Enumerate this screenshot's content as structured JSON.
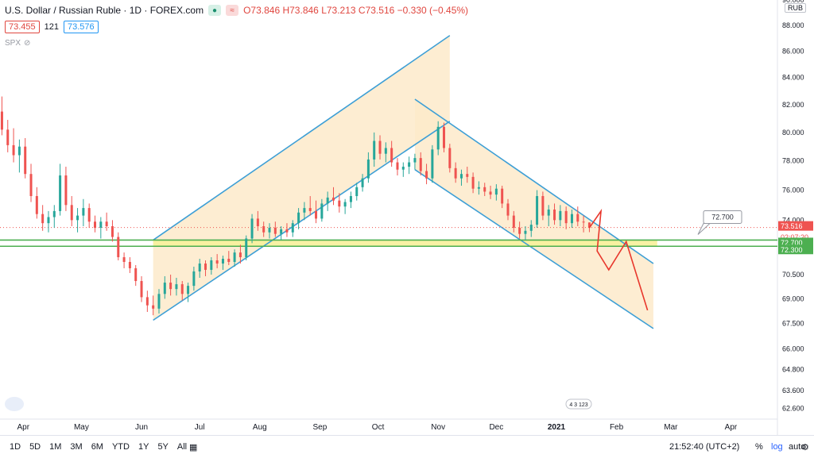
{
  "header": {
    "symbol": "U.S. Dollar / Russian Ruble · 1D · FOREX.com",
    "open": "O73.846",
    "high": "H73.846",
    "low": "L73.213",
    "close": "C73.516",
    "change": "−0.330 (−0.45%)",
    "bid": "73.455",
    "spread": "121",
    "ask": "73.576",
    "indicator": "SPX"
  },
  "axis": {
    "currency_button": "RUB"
  },
  "price_tags": {
    "last": "73.516",
    "countdown": "02:07:20",
    "upper_line": "72.700",
    "lower_line": "72.300",
    "callout": "72.700"
  },
  "event_badge": "4 3 123",
  "bottom": {
    "timeframes": [
      "1D",
      "5D",
      "1M",
      "3M",
      "6M",
      "YTD",
      "1Y",
      "5Y",
      "All"
    ],
    "time": "21:52:40 (UTC+2)",
    "percent": "%",
    "log": "log",
    "auto": "auto"
  },
  "colors": {
    "up": "#26a69a",
    "down": "#ef5350",
    "channel": "#3d9fd6",
    "channel_fill": "#fdeaca",
    "zone_fill": "#f7f09a",
    "hline": "#4caf50",
    "forecast": "#e8372c"
  },
  "chart_data": {
    "type": "candlestick",
    "title": "U.S. Dollar / Russian Ruble · 1D · FOREX.com",
    "y_axis_ticks": [
      62.6,
      63.6,
      64.8,
      66.0,
      67.5,
      69.0,
      70.5,
      72.0,
      74.0,
      76.0,
      78.0,
      80.0,
      82.0,
      84.0,
      86.0,
      88.0,
      90.0
    ],
    "x_axis_ticks": [
      "Apr",
      "May",
      "Jun",
      "Jul",
      "Aug",
      "Sep",
      "Oct",
      "Nov",
      "Dec",
      "2021",
      "Feb",
      "Mar",
      "Apr"
    ],
    "ylim": [
      62.0,
      90.0
    ],
    "scale": "log",
    "last_price": 73.516,
    "horizontal_lines": [
      72.7,
      72.3
    ],
    "candles": [
      {
        "d": "2020-03-21",
        "o": 81.5,
        "h": 82.6,
        "l": 79.8,
        "c": 80.2
      },
      {
        "d": "2020-03-24",
        "o": 80.2,
        "h": 80.9,
        "l": 78.6,
        "c": 79.1
      },
      {
        "d": "2020-03-27",
        "o": 79.1,
        "h": 80.3,
        "l": 77.9,
        "c": 78.4
      },
      {
        "d": "2020-03-30",
        "o": 78.4,
        "h": 79.5,
        "l": 77.2,
        "c": 79.0
      },
      {
        "d": "2020-04-02",
        "o": 79.0,
        "h": 79.6,
        "l": 76.8,
        "c": 77.1
      },
      {
        "d": "2020-04-05",
        "o": 77.1,
        "h": 77.8,
        "l": 75.2,
        "c": 75.6
      },
      {
        "d": "2020-04-08",
        "o": 75.6,
        "h": 76.2,
        "l": 74.1,
        "c": 74.4
      },
      {
        "d": "2020-04-11",
        "o": 74.4,
        "h": 75.0,
        "l": 73.3,
        "c": 73.8
      },
      {
        "d": "2020-04-14",
        "o": 73.8,
        "h": 74.6,
        "l": 73.2,
        "c": 74.2
      },
      {
        "d": "2020-04-17",
        "o": 74.2,
        "h": 75.0,
        "l": 73.5,
        "c": 74.6
      },
      {
        "d": "2020-04-20",
        "o": 74.6,
        "h": 77.8,
        "l": 74.3,
        "c": 77.0
      },
      {
        "d": "2020-04-23",
        "o": 77.0,
        "h": 77.6,
        "l": 74.6,
        "c": 75.0
      },
      {
        "d": "2020-04-26",
        "o": 75.0,
        "h": 75.6,
        "l": 73.6,
        "c": 74.0
      },
      {
        "d": "2020-04-29",
        "o": 74.0,
        "h": 74.8,
        "l": 73.2,
        "c": 74.3
      },
      {
        "d": "2020-05-02",
        "o": 74.3,
        "h": 75.4,
        "l": 73.6,
        "c": 74.8
      },
      {
        "d": "2020-05-05",
        "o": 74.8,
        "h": 75.1,
        "l": 73.5,
        "c": 73.9
      },
      {
        "d": "2020-05-08",
        "o": 73.9,
        "h": 74.3,
        "l": 73.2,
        "c": 73.5
      },
      {
        "d": "2020-05-11",
        "o": 73.5,
        "h": 74.2,
        "l": 72.8,
        "c": 73.9
      },
      {
        "d": "2020-05-14",
        "o": 73.9,
        "h": 74.5,
        "l": 73.3,
        "c": 73.6
      },
      {
        "d": "2020-05-17",
        "o": 73.6,
        "h": 74.0,
        "l": 72.6,
        "c": 72.9
      },
      {
        "d": "2020-05-20",
        "o": 72.9,
        "h": 73.2,
        "l": 71.4,
        "c": 71.6
      },
      {
        "d": "2020-05-23",
        "o": 71.6,
        "h": 71.9,
        "l": 70.9,
        "c": 71.3
      },
      {
        "d": "2020-05-26",
        "o": 71.3,
        "h": 71.6,
        "l": 70.6,
        "c": 70.9
      },
      {
        "d": "2020-05-29",
        "o": 70.9,
        "h": 71.1,
        "l": 69.8,
        "c": 70.1
      },
      {
        "d": "2020-06-01",
        "o": 70.1,
        "h": 70.4,
        "l": 68.8,
        "c": 69.1
      },
      {
        "d": "2020-06-04",
        "o": 69.1,
        "h": 69.5,
        "l": 68.2,
        "c": 68.6
      },
      {
        "d": "2020-06-07",
        "o": 68.6,
        "h": 69.2,
        "l": 68.0,
        "c": 68.4
      },
      {
        "d": "2020-06-10",
        "o": 68.4,
        "h": 69.6,
        "l": 68.1,
        "c": 69.3
      },
      {
        "d": "2020-06-13",
        "o": 69.3,
        "h": 70.4,
        "l": 69.0,
        "c": 70.0
      },
      {
        "d": "2020-06-16",
        "o": 70.0,
        "h": 70.5,
        "l": 69.2,
        "c": 69.6
      },
      {
        "d": "2020-06-19",
        "o": 69.6,
        "h": 70.3,
        "l": 69.2,
        "c": 69.9
      },
      {
        "d": "2020-06-22",
        "o": 69.9,
        "h": 70.1,
        "l": 68.9,
        "c": 69.3
      },
      {
        "d": "2020-06-25",
        "o": 69.3,
        "h": 70.0,
        "l": 68.8,
        "c": 69.8
      },
      {
        "d": "2020-06-28",
        "o": 69.8,
        "h": 71.0,
        "l": 69.5,
        "c": 70.7
      },
      {
        "d": "2020-07-01",
        "o": 70.7,
        "h": 71.5,
        "l": 70.3,
        "c": 71.2
      },
      {
        "d": "2020-07-04",
        "o": 71.2,
        "h": 71.4,
        "l": 70.4,
        "c": 70.8
      },
      {
        "d": "2020-07-07",
        "o": 70.8,
        "h": 71.6,
        "l": 70.5,
        "c": 71.4
      },
      {
        "d": "2020-07-10",
        "o": 71.4,
        "h": 71.8,
        "l": 70.9,
        "c": 71.2
      },
      {
        "d": "2020-07-13",
        "o": 71.2,
        "h": 71.7,
        "l": 70.8,
        "c": 71.5
      },
      {
        "d": "2020-07-16",
        "o": 71.5,
        "h": 72.0,
        "l": 71.1,
        "c": 71.3
      },
      {
        "d": "2020-07-19",
        "o": 71.3,
        "h": 72.1,
        "l": 71.0,
        "c": 71.9
      },
      {
        "d": "2020-07-22",
        "o": 71.9,
        "h": 72.4,
        "l": 71.2,
        "c": 71.6
      },
      {
        "d": "2020-07-25",
        "o": 71.6,
        "h": 73.0,
        "l": 71.4,
        "c": 72.8
      },
      {
        "d": "2020-07-28",
        "o": 72.8,
        "h": 74.4,
        "l": 72.5,
        "c": 74.1
      },
      {
        "d": "2020-07-31",
        "o": 74.1,
        "h": 74.6,
        "l": 73.3,
        "c": 73.6
      },
      {
        "d": "2020-08-03",
        "o": 73.6,
        "h": 73.9,
        "l": 72.9,
        "c": 73.2
      },
      {
        "d": "2020-08-06",
        "o": 73.2,
        "h": 73.8,
        "l": 72.8,
        "c": 73.5
      },
      {
        "d": "2020-08-09",
        "o": 73.5,
        "h": 73.9,
        "l": 72.9,
        "c": 73.1
      },
      {
        "d": "2020-08-12",
        "o": 73.1,
        "h": 73.6,
        "l": 72.7,
        "c": 73.4
      },
      {
        "d": "2020-08-15",
        "o": 73.4,
        "h": 73.8,
        "l": 72.9,
        "c": 73.2
      },
      {
        "d": "2020-08-18",
        "o": 73.2,
        "h": 74.0,
        "l": 72.9,
        "c": 73.8
      },
      {
        "d": "2020-08-21",
        "o": 73.8,
        "h": 74.8,
        "l": 73.4,
        "c": 74.5
      },
      {
        "d": "2020-08-24",
        "o": 74.5,
        "h": 75.2,
        "l": 74.0,
        "c": 74.8
      },
      {
        "d": "2020-08-27",
        "o": 74.8,
        "h": 75.6,
        "l": 74.3,
        "c": 74.6
      },
      {
        "d": "2020-08-30",
        "o": 74.6,
        "h": 75.3,
        "l": 73.8,
        "c": 74.1
      },
      {
        "d": "2020-09-02",
        "o": 74.1,
        "h": 75.4,
        "l": 73.9,
        "c": 75.1
      },
      {
        "d": "2020-09-05",
        "o": 75.1,
        "h": 75.9,
        "l": 74.6,
        "c": 75.5
      },
      {
        "d": "2020-09-08",
        "o": 75.5,
        "h": 76.2,
        "l": 75.0,
        "c": 75.3
      },
      {
        "d": "2020-09-11",
        "o": 75.3,
        "h": 75.8,
        "l": 74.5,
        "c": 74.9
      },
      {
        "d": "2020-09-14",
        "o": 74.9,
        "h": 75.4,
        "l": 74.4,
        "c": 75.2
      },
      {
        "d": "2020-09-17",
        "o": 75.2,
        "h": 75.9,
        "l": 74.8,
        "c": 75.6
      },
      {
        "d": "2020-09-20",
        "o": 75.6,
        "h": 76.5,
        "l": 75.3,
        "c": 76.2
      },
      {
        "d": "2020-09-23",
        "o": 76.2,
        "h": 77.1,
        "l": 75.9,
        "c": 76.8
      },
      {
        "d": "2020-09-26",
        "o": 76.8,
        "h": 78.6,
        "l": 76.5,
        "c": 78.1
      },
      {
        "d": "2020-09-29",
        "o": 78.1,
        "h": 80.0,
        "l": 77.6,
        "c": 79.4
      },
      {
        "d": "2020-10-02",
        "o": 79.4,
        "h": 79.8,
        "l": 78.1,
        "c": 78.5
      },
      {
        "d": "2020-10-05",
        "o": 78.5,
        "h": 79.3,
        "l": 77.9,
        "c": 78.9
      },
      {
        "d": "2020-10-08",
        "o": 78.9,
        "h": 79.4,
        "l": 77.6,
        "c": 77.9
      },
      {
        "d": "2020-10-11",
        "o": 77.9,
        "h": 78.2,
        "l": 77.0,
        "c": 77.4
      },
      {
        "d": "2020-10-14",
        "o": 77.4,
        "h": 77.9,
        "l": 76.9,
        "c": 77.6
      },
      {
        "d": "2020-10-17",
        "o": 77.6,
        "h": 78.3,
        "l": 77.1,
        "c": 77.9
      },
      {
        "d": "2020-10-20",
        "o": 77.9,
        "h": 78.5,
        "l": 77.4,
        "c": 78.2
      },
      {
        "d": "2020-10-23",
        "o": 78.2,
        "h": 78.6,
        "l": 77.0,
        "c": 77.3
      },
      {
        "d": "2020-10-26",
        "o": 77.3,
        "h": 77.8,
        "l": 76.4,
        "c": 76.8
      },
      {
        "d": "2020-10-29",
        "o": 76.8,
        "h": 79.1,
        "l": 76.5,
        "c": 78.8
      },
      {
        "d": "2020-11-01",
        "o": 78.8,
        "h": 80.8,
        "l": 78.4,
        "c": 80.4
      },
      {
        "d": "2020-11-04",
        "o": 80.4,
        "h": 80.7,
        "l": 78.6,
        "c": 78.9
      },
      {
        "d": "2020-11-07",
        "o": 78.9,
        "h": 79.2,
        "l": 77.2,
        "c": 77.5
      },
      {
        "d": "2020-11-10",
        "o": 77.5,
        "h": 77.9,
        "l": 76.5,
        "c": 76.8
      },
      {
        "d": "2020-11-13",
        "o": 76.8,
        "h": 77.4,
        "l": 76.3,
        "c": 77.1
      },
      {
        "d": "2020-11-16",
        "o": 77.1,
        "h": 77.6,
        "l": 76.5,
        "c": 76.9
      },
      {
        "d": "2020-11-19",
        "o": 76.9,
        "h": 77.2,
        "l": 75.8,
        "c": 76.1
      },
      {
        "d": "2020-11-22",
        "o": 76.1,
        "h": 76.6,
        "l": 75.7,
        "c": 76.2
      },
      {
        "d": "2020-11-25",
        "o": 76.2,
        "h": 76.5,
        "l": 75.6,
        "c": 75.9
      },
      {
        "d": "2020-11-28",
        "o": 75.9,
        "h": 76.3,
        "l": 75.4,
        "c": 75.7
      },
      {
        "d": "2020-12-01",
        "o": 75.7,
        "h": 76.4,
        "l": 75.3,
        "c": 76.1
      },
      {
        "d": "2020-12-04",
        "o": 76.1,
        "h": 76.3,
        "l": 74.8,
        "c": 75.1
      },
      {
        "d": "2020-12-07",
        "o": 75.1,
        "h": 75.4,
        "l": 74.0,
        "c": 74.3
      },
      {
        "d": "2020-12-10",
        "o": 74.3,
        "h": 74.6,
        "l": 73.2,
        "c": 73.5
      },
      {
        "d": "2020-12-13",
        "o": 73.5,
        "h": 73.9,
        "l": 72.8,
        "c": 73.1
      },
      {
        "d": "2020-12-16",
        "o": 73.1,
        "h": 73.6,
        "l": 72.7,
        "c": 73.3
      },
      {
        "d": "2020-12-19",
        "o": 73.3,
        "h": 74.0,
        "l": 72.9,
        "c": 73.7
      },
      {
        "d": "2020-12-22",
        "o": 73.7,
        "h": 76.0,
        "l": 73.5,
        "c": 75.6
      },
      {
        "d": "2020-12-25",
        "o": 75.6,
        "h": 75.9,
        "l": 74.0,
        "c": 74.3
      },
      {
        "d": "2020-12-28",
        "o": 74.3,
        "h": 75.0,
        "l": 73.6,
        "c": 74.7
      },
      {
        "d": "2020-12-31",
        "o": 74.7,
        "h": 75.1,
        "l": 73.7,
        "c": 74.0
      },
      {
        "d": "2021-01-03",
        "o": 74.0,
        "h": 75.0,
        "l": 73.6,
        "c": 74.6
      },
      {
        "d": "2021-01-06",
        "o": 74.6,
        "h": 74.9,
        "l": 73.4,
        "c": 73.8
      },
      {
        "d": "2021-01-09",
        "o": 73.8,
        "h": 74.7,
        "l": 73.5,
        "c": 74.4
      },
      {
        "d": "2021-01-12",
        "o": 74.4,
        "h": 74.9,
        "l": 73.6,
        "c": 73.9
      },
      {
        "d": "2021-01-15",
        "o": 73.9,
        "h": 74.3,
        "l": 73.2,
        "c": 73.846
      },
      {
        "d": "2021-01-18",
        "o": 73.846,
        "h": 73.846,
        "l": 73.213,
        "c": 73.516
      }
    ],
    "channels": [
      {
        "name": "",
        "color": "#3d9fd6",
        "upper": [
          [
            "2020-06-07",
            72.7
          ],
          [
            "2020-11-07",
            87.2
          ]
        ],
        "lower": [
          [
            "2020-06-07",
            67.7
          ],
          [
            "2020-11-07",
            80.8
          ]
        ]
      },
      {
        "name": "",
        "color": "#3d9fd6",
        "upper": [
          [
            "2020-10-20",
            82.4
          ],
          [
            "2021-02-20",
            71.2
          ]
        ],
        "lower": [
          [
            "2020-10-20",
            77.4
          ],
          [
            "2021-02-20",
            67.2
          ]
        ]
      }
    ],
    "forecast_path": [
      [
        "2021-01-18",
        73.5
      ],
      [
        "2021-01-24",
        74.6
      ],
      [
        "2021-01-22",
        72.0
      ],
      [
        "2021-01-28",
        70.8
      ],
      [
        "2021-02-06",
        72.6
      ],
      [
        "2021-02-17",
        68.3
      ]
    ],
    "zones": [
      {
        "from": "2020-06-07",
        "to": "2021-02-22",
        "low": 72.3,
        "high": 72.7
      }
    ]
  }
}
